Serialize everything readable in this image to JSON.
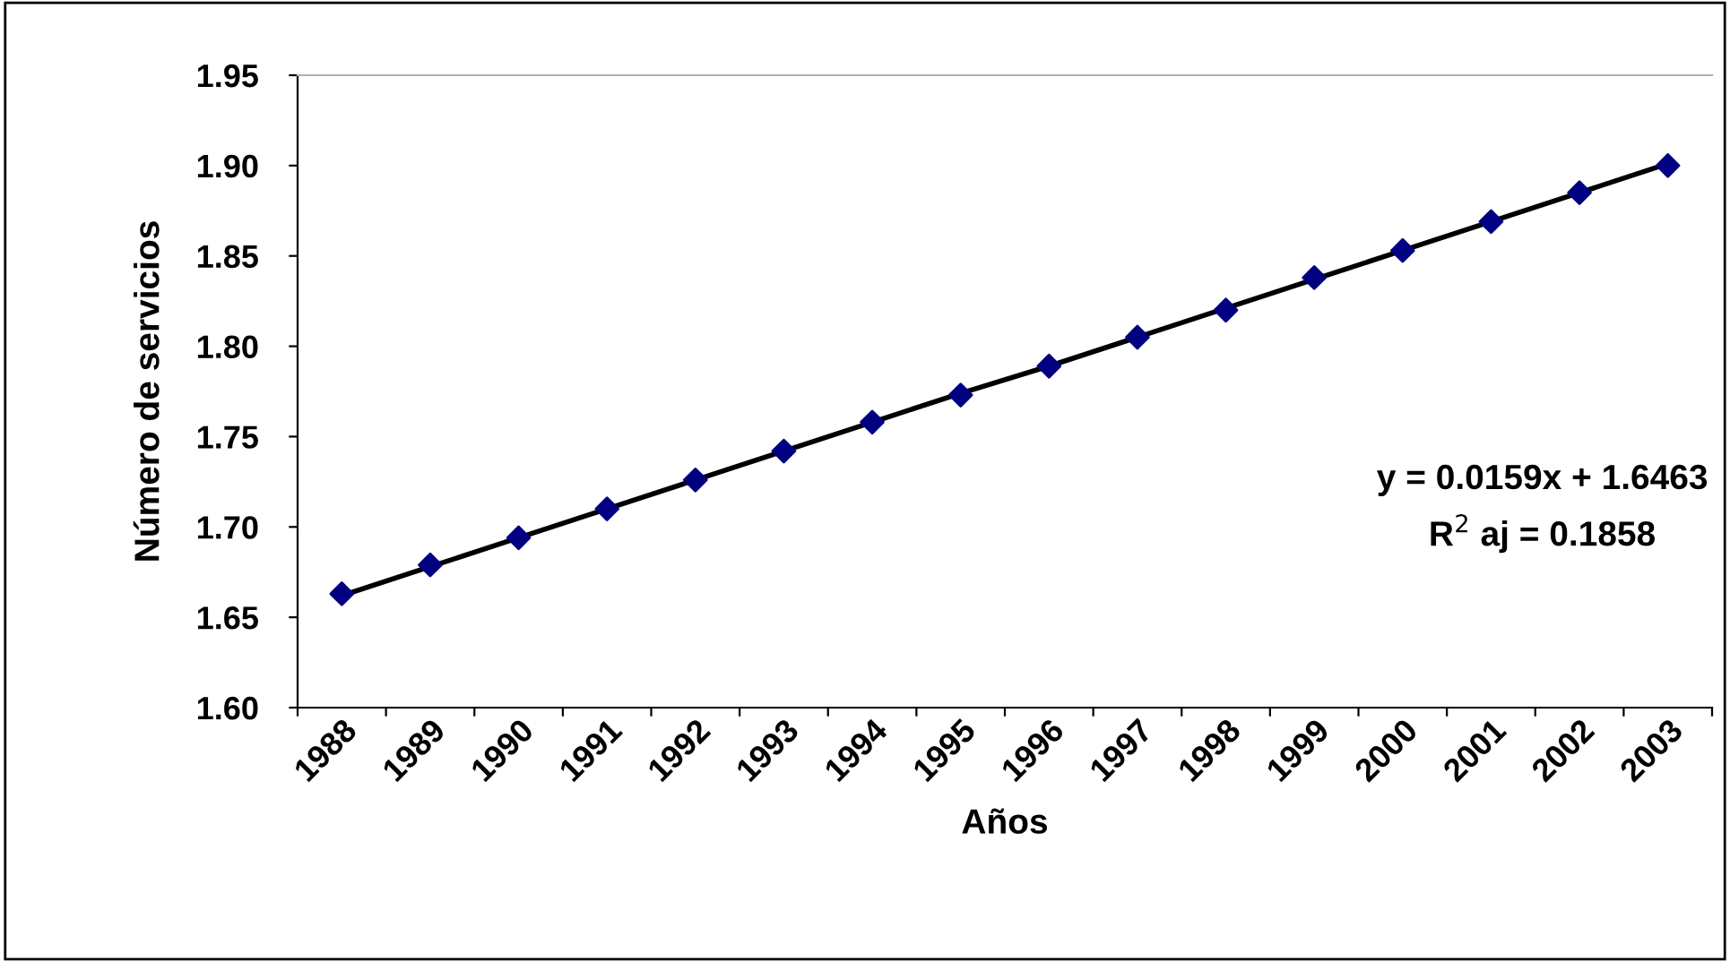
{
  "chart_data": {
    "type": "line",
    "xlabel": "Años",
    "ylabel": "Número de servicios",
    "categories": [
      "1988",
      "1989",
      "1990",
      "1991",
      "1992",
      "1993",
      "1994",
      "1995",
      "1996",
      "1997",
      "1998",
      "1999",
      "2000",
      "2001",
      "2002",
      "2003"
    ],
    "series": [
      {
        "type": "scatter",
        "color": "#000080",
        "marker": "diamond",
        "values": [
          1.663,
          1.679,
          1.694,
          1.71,
          1.726,
          1.742,
          1.758,
          1.773,
          1.789,
          1.805,
          1.82,
          1.838,
          1.853,
          1.869,
          1.885,
          1.9
        ]
      },
      {
        "color": "#000000",
        "marker": "none",
        "values": [
          1.662,
          1.678,
          1.694,
          1.71,
          1.726,
          1.742,
          1.758,
          1.774,
          1.789,
          1.805,
          1.821,
          1.837,
          1.853,
          1.869,
          1.885,
          1.901
        ]
      }
    ],
    "ylim": [
      1.6,
      1.95
    ],
    "yticks": [
      {
        "value": 1.6,
        "label": "1.60"
      },
      {
        "value": 1.65,
        "label": "1.65"
      },
      {
        "value": 1.7,
        "label": "1.70"
      },
      {
        "value": 1.75,
        "label": "1.75"
      },
      {
        "value": 1.8,
        "label": "1.80"
      },
      {
        "value": 1.85,
        "label": "1.85"
      },
      {
        "value": 1.9,
        "label": "1.90"
      },
      {
        "value": 1.95,
        "label": "1.95"
      }
    ],
    "annotations": [
      "y = 0.0159x + 1.6463",
      "R$^{2}$ aj = 0.1858"
    ],
    "grid": false,
    "legend": false
  }
}
